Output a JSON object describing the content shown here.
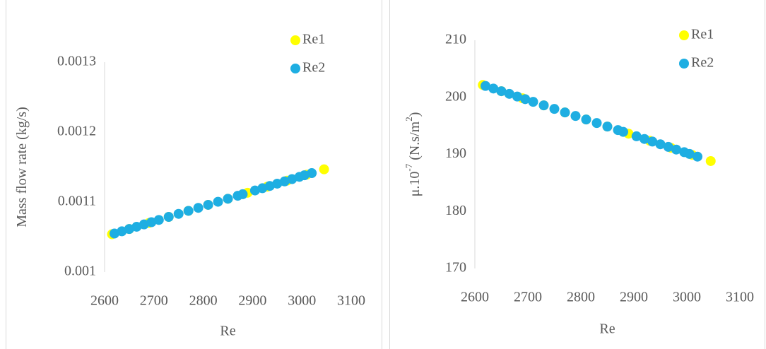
{
  "chart_data": [
    {
      "type": "scatter",
      "xlabel": "Re",
      "ylabel": [
        "Mass flow rate (kg/s)"
      ],
      "xlim": [
        2600,
        3100
      ],
      "xticks": [
        2600,
        2700,
        2800,
        2900,
        3000,
        3100
      ],
      "ylim": [
        0.001,
        0.0013
      ],
      "yticks": [
        0.001,
        0.0011,
        0.0012,
        0.0013
      ],
      "grid": false,
      "legend": "upper right",
      "series": [
        {
          "name": "Re1",
          "color": "#ffff00",
          "x": [
            2615,
            2650,
            2690,
            2730,
            2770,
            2810,
            2850,
            2890,
            2930,
            2970,
            3010,
            3045
          ],
          "values": [
            0.001054,
            0.0010615,
            0.0010701,
            0.0010788,
            0.0010874,
            0.001096,
            0.0011047,
            0.0011133,
            0.001122,
            0.0011306,
            0.0011392,
            0.0011468
          ]
        },
        {
          "name": "Re2",
          "color": "#1eaee2",
          "x": [
            2620,
            2635,
            2650,
            2665,
            2680,
            2695,
            2710,
            2730,
            2750,
            2770,
            2790,
            2810,
            2830,
            2850,
            2870,
            2880,
            2905,
            2920,
            2935,
            2950,
            2965,
            2980,
            2995,
            3005,
            3020
          ],
          "values": [
            0.001055,
            0.0010582,
            0.0010615,
            0.0010647,
            0.001068,
            0.0010712,
            0.0010744,
            0.0010788,
            0.0010831,
            0.0010874,
            0.0010917,
            0.001096,
            0.0011004,
            0.0011047,
            0.001109,
            0.0011112,
            0.0011166,
            0.0011198,
            0.001123,
            0.0011263,
            0.0011295,
            0.0011328,
            0.001136,
            0.0011382,
            0.0011414
          ]
        }
      ]
    },
    {
      "type": "scatter",
      "xlabel": "Re",
      "ylabel": [
        "μ.10",
        "-7",
        " (N.s/m",
        "2",
        ")"
      ],
      "xlim": [
        2600,
        3100
      ],
      "xticks": [
        2600,
        2700,
        2800,
        2900,
        3000,
        3100
      ],
      "ylim": [
        170,
        210
      ],
      "yticks": [
        170,
        180,
        190,
        200,
        210
      ],
      "grid": false,
      "legend": "upper right",
      "series": [
        {
          "name": "Re1",
          "color": "#ffff00",
          "x": [
            2615,
            2650,
            2690,
            2730,
            2770,
            2810,
            2850,
            2890,
            2930,
            2970,
            3010,
            3045
          ],
          "values": [
            202.16,
            201.07,
            199.83,
            198.59,
            197.35,
            196.11,
            194.87,
            193.63,
            192.39,
            191.15,
            189.91,
            188.83
          ]
        },
        {
          "name": "Re2",
          "color": "#1eaee2",
          "x": [
            2620,
            2635,
            2650,
            2665,
            2680,
            2695,
            2710,
            2730,
            2750,
            2770,
            2790,
            2810,
            2830,
            2850,
            2870,
            2880,
            2905,
            2920,
            2935,
            2950,
            2965,
            2980,
            2995,
            3005,
            3020
          ],
          "values": [
            202,
            201.54,
            201.07,
            200.61,
            200.14,
            199.68,
            199.21,
            198.59,
            197.97,
            197.35,
            196.73,
            196.11,
            195.49,
            194.87,
            194.25,
            193.94,
            193.17,
            192.7,
            192.24,
            191.77,
            191.31,
            190.84,
            190.38,
            190.07,
            189.6
          ]
        }
      ]
    }
  ]
}
